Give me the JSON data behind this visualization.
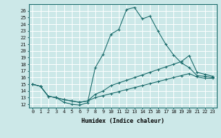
{
  "title": "",
  "xlabel": "Humidex (Indice chaleur)",
  "bg_color": "#cce8e8",
  "grid_color": "#ffffff",
  "line_color": "#1a6b6b",
  "marker": "+",
  "xlim": [
    -0.5,
    23.5
  ],
  "ylim": [
    11.5,
    27.0
  ],
  "yticks": [
    12,
    13,
    14,
    15,
    16,
    17,
    18,
    19,
    20,
    21,
    22,
    23,
    24,
    25,
    26
  ],
  "xticks": [
    0,
    1,
    2,
    3,
    4,
    5,
    6,
    7,
    8,
    9,
    10,
    11,
    12,
    13,
    14,
    15,
    16,
    17,
    18,
    19,
    20,
    21,
    22,
    23
  ],
  "series": [
    [
      15.0,
      14.7,
      13.2,
      13.0,
      12.3,
      12.0,
      11.9,
      12.2,
      17.5,
      19.5,
      22.5,
      23.2,
      26.2,
      26.5,
      24.8,
      25.2,
      23.0,
      21.0,
      19.4,
      18.2,
      17.5,
      16.3,
      16.2,
      16.0
    ],
    [
      15.0,
      14.7,
      13.2,
      13.0,
      12.7,
      12.5,
      12.3,
      12.5,
      13.5,
      14.0,
      14.8,
      15.2,
      15.6,
      16.0,
      16.4,
      16.8,
      17.2,
      17.6,
      18.0,
      18.4,
      19.3,
      16.8,
      16.5,
      16.2
    ],
    [
      15.0,
      14.7,
      13.2,
      13.0,
      12.7,
      12.5,
      12.3,
      12.5,
      13.0,
      13.3,
      13.6,
      13.9,
      14.2,
      14.5,
      14.8,
      15.1,
      15.4,
      15.7,
      16.0,
      16.3,
      16.6,
      16.1,
      15.9,
      15.9
    ]
  ]
}
